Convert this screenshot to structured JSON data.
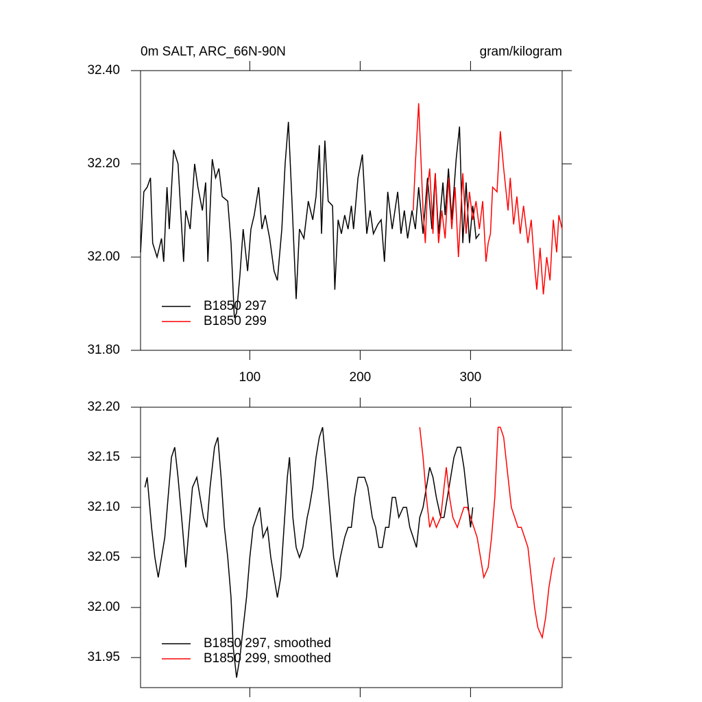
{
  "chart_data": [
    {
      "type": "line",
      "title": "0m SALT, ARC_66N-90N",
      "units": "gram/kilogram",
      "xlim": [
        1,
        383
      ],
      "xticks": [
        100,
        200,
        300
      ],
      "xtick_labels": true,
      "ylim": [
        31.8,
        32.4
      ],
      "yticks": [
        {
          "value": 31.8,
          "label": "31.80"
        },
        {
          "value": 32.0,
          "label": "32.00"
        },
        {
          "value": 32.2,
          "label": "32.20"
        },
        {
          "value": 32.4,
          "label": "32.40"
        }
      ],
      "legend": "lower left",
      "series": [
        {
          "name": "B1850 297",
          "color": "#000000",
          "x": [
            1,
            4,
            7,
            10,
            12,
            16,
            20,
            22,
            25,
            27,
            31,
            35,
            40,
            42,
            46,
            50,
            53,
            57,
            60,
            62,
            66,
            69,
            72,
            75,
            80,
            83,
            86,
            88,
            91,
            94,
            98,
            101,
            104,
            108,
            111,
            114,
            118,
            122,
            125,
            129,
            132,
            135,
            138,
            142,
            145,
            149,
            153,
            157,
            160,
            163,
            165,
            168,
            171,
            175,
            177,
            180,
            183,
            186,
            189,
            192,
            194,
            198,
            202,
            206,
            209,
            212,
            216,
            219,
            222,
            225,
            229,
            234,
            237,
            240,
            243,
            247,
            250,
            253,
            257,
            261,
            265,
            268,
            271,
            275,
            277,
            280,
            283,
            287,
            290,
            293,
            296,
            299,
            302,
            305,
            308
          ],
          "values": [
            32.01,
            32.14,
            32.15,
            32.17,
            32.03,
            32.0,
            32.04,
            31.99,
            32.15,
            32.06,
            32.23,
            32.2,
            31.99,
            32.1,
            32.06,
            32.2,
            32.15,
            32.1,
            32.16,
            31.99,
            32.21,
            32.17,
            32.19,
            32.13,
            32.12,
            32.03,
            31.87,
            31.88,
            31.96,
            32.06,
            31.97,
            32.06,
            32.09,
            32.15,
            32.06,
            32.09,
            32.04,
            31.97,
            31.95,
            32.06,
            32.2,
            32.29,
            32.13,
            31.91,
            32.06,
            32.04,
            32.12,
            32.08,
            32.13,
            32.24,
            32.05,
            32.25,
            32.12,
            32.11,
            31.93,
            32.08,
            32.05,
            32.09,
            32.06,
            32.11,
            32.06,
            32.17,
            32.22,
            32.05,
            32.1,
            32.05,
            32.07,
            32.08,
            31.99,
            32.14,
            32.06,
            32.14,
            32.05,
            32.1,
            32.04,
            32.1,
            32.06,
            32.15,
            32.05,
            32.17,
            32.06,
            32.18,
            32.05,
            32.16,
            32.09,
            32.19,
            32.08,
            32.21,
            32.28,
            32.03,
            32.16,
            32.03,
            32.11,
            32.04,
            32.05
          ]
        },
        {
          "name": "B1850 299",
          "color": "#ff0000",
          "x": [
            248,
            250,
            253,
            257,
            259,
            261,
            263,
            266,
            268,
            271,
            274,
            277,
            280,
            283,
            286,
            289,
            293,
            296,
            299,
            302,
            305,
            308,
            311,
            314,
            316,
            318,
            320,
            324,
            327,
            330,
            334,
            336,
            339,
            342,
            345,
            348,
            352,
            355,
            358,
            360,
            363,
            366,
            369,
            372,
            375,
            378,
            380,
            383
          ],
          "values": [
            32.1,
            32.2,
            32.33,
            32.1,
            32.03,
            32.15,
            32.19,
            32.05,
            32.18,
            32.03,
            32.1,
            32.04,
            32.17,
            32.06,
            32.15,
            32.0,
            32.18,
            32.05,
            32.14,
            32.08,
            32.12,
            32.06,
            32.12,
            31.99,
            32.03,
            32.05,
            32.15,
            32.14,
            32.27,
            32.19,
            32.1,
            32.17,
            32.07,
            32.13,
            32.05,
            32.11,
            32.03,
            32.08,
            31.98,
            31.93,
            32.02,
            31.92,
            32.0,
            31.95,
            32.08,
            32.01,
            32.09,
            32.06
          ]
        }
      ]
    },
    {
      "type": "line",
      "xlim": [
        1,
        383
      ],
      "xticks": [
        100,
        200,
        300
      ],
      "xtick_labels": false,
      "ylim": [
        31.92,
        32.2
      ],
      "yticks": [
        31.95,
        {
          "value": 32.0,
          "label": "32.00"
        },
        32.05,
        {
          "value": 32.1,
          "label": "32.10"
        },
        32.15,
        {
          "value": 32.2,
          "label": "32.20"
        }
      ],
      "legend": "lower left",
      "series": [
        {
          "name": "B1850 297, smoothed",
          "color": "#000000",
          "x": [
            5,
            7,
            11,
            14,
            17,
            20,
            23,
            26,
            29,
            32,
            35,
            39,
            42,
            45,
            48,
            52,
            55,
            58,
            61,
            64,
            68,
            71,
            74,
            77,
            80,
            83,
            85,
            88,
            91,
            94,
            97,
            100,
            103,
            106,
            109,
            112,
            116,
            119,
            122,
            125,
            128,
            131,
            134,
            136,
            139,
            142,
            145,
            148,
            152,
            154,
            157,
            160,
            163,
            166,
            170,
            173,
            176,
            179,
            182,
            186,
            189,
            192,
            195,
            198,
            201,
            204,
            207,
            211,
            214,
            217,
            220,
            223,
            226,
            229,
            232,
            235,
            239,
            242,
            245,
            248,
            251,
            254,
            257,
            260,
            263,
            266,
            269,
            273,
            276,
            279,
            282,
            285,
            288,
            291,
            294,
            298,
            300,
            302
          ],
          "values": [
            32.12,
            32.13,
            32.08,
            32.05,
            32.03,
            32.05,
            32.07,
            32.11,
            32.15,
            32.16,
            32.13,
            32.08,
            32.04,
            32.08,
            32.12,
            32.13,
            32.11,
            32.09,
            32.08,
            32.12,
            32.16,
            32.17,
            32.13,
            32.08,
            32.05,
            32.01,
            31.96,
            31.93,
            31.95,
            31.98,
            32.01,
            32.05,
            32.08,
            32.09,
            32.1,
            32.07,
            32.08,
            32.05,
            32.03,
            32.01,
            32.03,
            32.08,
            32.13,
            32.15,
            32.09,
            32.06,
            32.05,
            32.06,
            32.09,
            32.1,
            32.12,
            32.15,
            32.17,
            32.18,
            32.13,
            32.09,
            32.05,
            32.03,
            32.05,
            32.07,
            32.08,
            32.08,
            32.11,
            32.13,
            32.13,
            32.13,
            32.12,
            32.09,
            32.08,
            32.06,
            32.06,
            32.08,
            32.08,
            32.11,
            32.11,
            32.09,
            32.1,
            32.1,
            32.08,
            32.07,
            32.06,
            32.09,
            32.1,
            32.12,
            32.14,
            32.13,
            32.11,
            32.09,
            32.09,
            32.11,
            32.13,
            32.15,
            32.16,
            32.16,
            32.14,
            32.1,
            32.08,
            32.1
          ]
        },
        {
          "name": "B1850 299, smoothed",
          "color": "#ff0000",
          "x": [
            254,
            257,
            260,
            263,
            266,
            269,
            273,
            276,
            278,
            281,
            284,
            288,
            291,
            294,
            297,
            300,
            303,
            306,
            309,
            312,
            316,
            319,
            322,
            325,
            327,
            330,
            334,
            337,
            340,
            343,
            346,
            349,
            352,
            355,
            358,
            361,
            365,
            368,
            371,
            374,
            376
          ],
          "values": [
            32.18,
            32.15,
            32.11,
            32.08,
            32.09,
            32.08,
            32.09,
            32.12,
            32.14,
            32.11,
            32.09,
            32.08,
            32.09,
            32.1,
            32.1,
            32.09,
            32.08,
            32.07,
            32.05,
            32.03,
            32.04,
            32.07,
            32.11,
            32.18,
            32.18,
            32.17,
            32.13,
            32.1,
            32.09,
            32.08,
            32.08,
            32.07,
            32.06,
            32.03,
            32.0,
            31.98,
            31.97,
            31.99,
            32.02,
            32.04,
            32.05
          ]
        }
      ]
    }
  ]
}
